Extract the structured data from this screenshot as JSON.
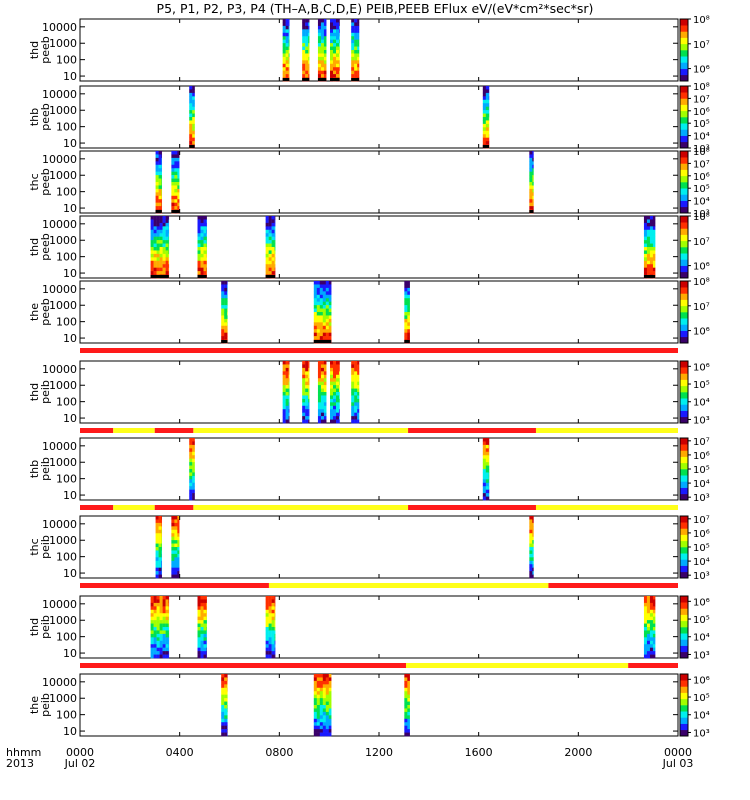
{
  "title": "P5, P1, P2, P3, P4 (TH–A,B,C,D,E) PEIB,PEEB EFlux eV/(eV*cm²*sec*sr)",
  "colors": {
    "bar_red": "#ff1a1a",
    "bar_yellow": "#ffff1a",
    "colormap": [
      "#3a006a",
      "#1a1aff",
      "#00aaff",
      "#00eeee",
      "#00e050",
      "#a0ff00",
      "#ffff00",
      "#ffaa00",
      "#ff3000",
      "#cc0000"
    ]
  },
  "x_axis": {
    "row1_label": "hhmm",
    "row2_label": "2013",
    "ticks": [
      {
        "t": 0,
        "label": "0000",
        "sublabel": "Jul 02"
      },
      {
        "t": 240,
        "label": "0400",
        "sublabel": ""
      },
      {
        "t": 480,
        "label": "0800",
        "sublabel": ""
      },
      {
        "t": 720,
        "label": "1200",
        "sublabel": ""
      },
      {
        "t": 960,
        "label": "1600",
        "sublabel": ""
      },
      {
        "t": 1200,
        "label": "2000",
        "sublabel": ""
      },
      {
        "t": 1440,
        "label": "0000",
        "sublabel": "Jul 03"
      }
    ]
  },
  "chart_data": {
    "type": "heatmap",
    "x_range_minutes": [
      0,
      1440
    ],
    "y_scale": "log",
    "panels": [
      {
        "name": "thd peeb",
        "ylabel": [
          "thd",
          "peeb"
        ],
        "yticks": [
          "10000",
          "1000",
          "100",
          "10"
        ],
        "ylim": [
          5,
          30000
        ],
        "cbar_labels": [
          "10⁸",
          "10⁷",
          "10⁶"
        ],
        "cbar_range": [
          5.5,
          8
        ],
        "bursts": [
          [
            488,
            504
          ],
          [
            535,
            552
          ],
          [
            573,
            593
          ],
          [
            602,
            625
          ],
          [
            653,
            672
          ]
        ]
      },
      {
        "name": "thb peeb",
        "ylabel": [
          "thb",
          "peeb"
        ],
        "yticks": [
          "10000",
          "1000",
          "100",
          "10"
        ],
        "ylim": [
          5,
          30000
        ],
        "cbar_labels": [
          "10⁸",
          "10⁷",
          "10⁶",
          "10⁵",
          "10⁴",
          "10³"
        ],
        "cbar_range": [
          3,
          8
        ],
        "bursts": [
          [
            263,
            276
          ],
          [
            970,
            985
          ]
        ]
      },
      {
        "name": "thc peeb",
        "ylabel": [
          "thc",
          "peeb"
        ],
        "yticks": [
          "10000",
          "1000",
          "100",
          "10"
        ],
        "ylim": [
          5,
          30000
        ],
        "cbar_labels": [
          "10⁸",
          "10⁷",
          "10⁶",
          "10⁵",
          "10⁴",
          "10³"
        ],
        "cbar_range": [
          3,
          8
        ],
        "bursts": [
          [
            182,
            197
          ],
          [
            220,
            239
          ],
          [
            1082,
            1092
          ]
        ]
      },
      {
        "name": "thd peeb",
        "ylabel": [
          "thd",
          "peeb"
        ],
        "yticks": [
          "10000",
          "1000",
          "100",
          "10"
        ],
        "ylim": [
          5,
          30000
        ],
        "cbar_labels": [
          "10⁸",
          "10⁷",
          "10⁶"
        ],
        "cbar_range": [
          5.5,
          8
        ],
        "bursts": [
          [
            170,
            214
          ],
          [
            283,
            305
          ],
          [
            447,
            470
          ],
          [
            1358,
            1385
          ]
        ]
      },
      {
        "name": "the peeb",
        "ylabel": [
          "the",
          "peeb"
        ],
        "yticks": [
          "10000",
          "1000",
          "100",
          "10"
        ],
        "ylim": [
          5,
          30000
        ],
        "cbar_labels": [
          "10⁸",
          "10⁷",
          "10⁶"
        ],
        "cbar_range": [
          5.5,
          8
        ],
        "bursts": [
          [
            340,
            355
          ],
          [
            563,
            605
          ],
          [
            781,
            794
          ]
        ]
      },
      {
        "name": "thd peib",
        "ylabel": [
          "thd",
          "peib"
        ],
        "yticks": [
          "10000",
          "1000",
          "100",
          "10"
        ],
        "ylim": [
          5,
          30000
        ],
        "cbar_labels": [
          "10⁶",
          "10⁵",
          "10⁴",
          "10³"
        ],
        "cbar_range": [
          2.8,
          6.3
        ],
        "bursts": [
          [
            488,
            504
          ],
          [
            535,
            552
          ],
          [
            573,
            593
          ],
          [
            602,
            625
          ],
          [
            653,
            672
          ]
        ]
      },
      {
        "name": "thb peib",
        "ylabel": [
          "thb",
          "peib"
        ],
        "yticks": [
          "10000",
          "1000",
          "100",
          "10"
        ],
        "ylim": [
          5,
          30000
        ],
        "cbar_labels": [
          "10⁷",
          "10⁶",
          "10⁵",
          "10⁴",
          "10³"
        ],
        "cbar_range": [
          2.8,
          7.2
        ],
        "bursts": [
          [
            263,
            276
          ],
          [
            970,
            985
          ]
        ]
      },
      {
        "name": "thc peib",
        "ylabel": [
          "thc",
          "peib"
        ],
        "yticks": [
          "10000",
          "1000",
          "100",
          "10"
        ],
        "ylim": [
          5,
          30000
        ],
        "cbar_labels": [
          "10⁷",
          "10⁶",
          "10⁵",
          "10⁴",
          "10³"
        ],
        "cbar_range": [
          2.8,
          7.2
        ],
        "bursts": [
          [
            182,
            197
          ],
          [
            220,
            239
          ],
          [
            1082,
            1092
          ]
        ]
      },
      {
        "name": "thd peib",
        "ylabel": [
          "thd",
          "peib"
        ],
        "yticks": [
          "10000",
          "1000",
          "100",
          "10"
        ],
        "ylim": [
          5,
          30000
        ],
        "cbar_labels": [
          "10⁶",
          "10⁵",
          "10⁴",
          "10³"
        ],
        "cbar_range": [
          2.8,
          6.3
        ],
        "bursts": [
          [
            170,
            214
          ],
          [
            283,
            305
          ],
          [
            447,
            470
          ],
          [
            1358,
            1385
          ]
        ]
      },
      {
        "name": "the peib",
        "ylabel": [
          "the",
          "peib"
        ],
        "yticks": [
          "10000",
          "1000",
          "100",
          "10"
        ],
        "ylim": [
          5,
          30000
        ],
        "cbar_labels": [
          "10⁶",
          "10⁵",
          "10⁴",
          "10³"
        ],
        "cbar_range": [
          2.8,
          6.3
        ],
        "bursts": [
          [
            340,
            355
          ],
          [
            563,
            605
          ],
          [
            781,
            794
          ]
        ]
      }
    ],
    "mode_bars": [
      {
        "after_panel": 4,
        "segments": [
          [
            0,
            1440,
            "red"
          ]
        ]
      },
      {
        "after_panel": 5,
        "segments": [
          [
            0,
            80,
            "red"
          ],
          [
            80,
            180,
            "yellow"
          ],
          [
            180,
            273,
            "red"
          ],
          [
            273,
            790,
            "yellow"
          ],
          [
            790,
            1098,
            "red"
          ],
          [
            1098,
            1440,
            "yellow"
          ]
        ]
      },
      {
        "after_panel": 6,
        "segments": [
          [
            0,
            80,
            "red"
          ],
          [
            80,
            180,
            "yellow"
          ],
          [
            180,
            273,
            "red"
          ],
          [
            273,
            790,
            "yellow"
          ],
          [
            790,
            1098,
            "red"
          ],
          [
            1098,
            1440,
            "yellow"
          ]
        ]
      },
      {
        "after_panel": 7,
        "segments": [
          [
            0,
            455,
            "red"
          ],
          [
            455,
            1128,
            "yellow"
          ],
          [
            1128,
            1440,
            "red"
          ]
        ]
      },
      {
        "after_panel": 8,
        "segments": [
          [
            0,
            785,
            "red"
          ],
          [
            785,
            1320,
            "yellow"
          ],
          [
            1320,
            1440,
            "red"
          ]
        ]
      }
    ]
  }
}
